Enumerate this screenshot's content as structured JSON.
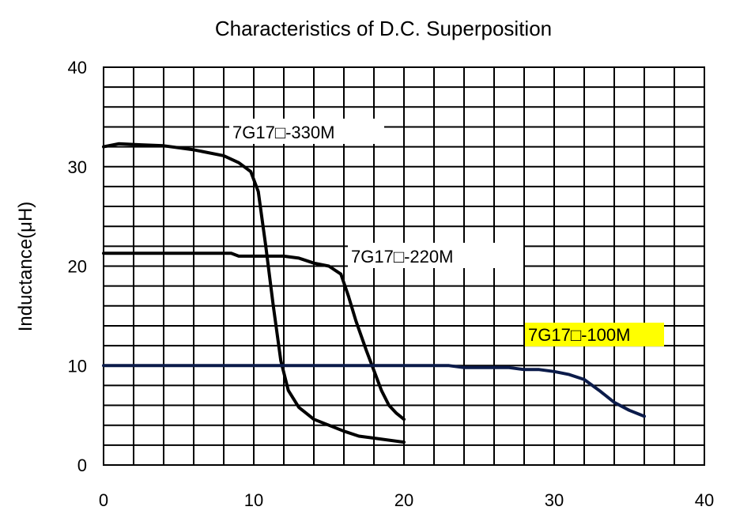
{
  "chart_data": {
    "type": "line",
    "title": "Characteristics of D.C. Superposition",
    "xlabel": "",
    "ylabel": "Inductance(μH)",
    "xlim": [
      0,
      40
    ],
    "ylim": [
      0,
      40
    ],
    "x_ticks": [
      "0",
      "10",
      "20",
      "30",
      "40"
    ],
    "y_ticks": [
      "0",
      "10",
      "20",
      "30",
      "40"
    ],
    "grid": true,
    "x_minor_step": 2,
    "y_minor_step": 2,
    "series": [
      {
        "name": "7G17□-330M",
        "color": "#000000",
        "x": [
          0,
          1,
          2.5,
          4,
          6,
          8,
          9,
          9.8,
          10.3,
          10.8,
          11.3,
          11.8,
          12.3,
          13,
          14,
          15,
          16,
          17,
          18,
          20
        ],
        "y": [
          32,
          32.3,
          32.2,
          32.1,
          31.7,
          31.1,
          30.4,
          29.5,
          27.5,
          22,
          16,
          10.5,
          7.5,
          5.8,
          4.6,
          4.0,
          3.4,
          2.9,
          2.7,
          2.3
        ]
      },
      {
        "name": "7G17□-220M",
        "color": "#000000",
        "x": [
          0,
          4,
          8.5,
          9,
          12,
          13,
          14,
          15,
          15.8,
          16.3,
          16.8,
          17.5,
          18,
          18.5,
          19,
          19.5,
          20
        ],
        "y": [
          21.3,
          21.3,
          21.3,
          21.0,
          21.0,
          20.8,
          20.3,
          20.0,
          19.2,
          17,
          14.5,
          11.5,
          9.5,
          7.5,
          6.0,
          5.2,
          4.6
        ]
      },
      {
        "name": "7G17□-100M",
        "color": "#0b1b4a",
        "x": [
          0,
          10,
          20,
          23,
          24,
          27,
          28,
          29,
          30,
          31,
          32,
          33,
          34,
          35,
          36
        ],
        "y": [
          10,
          10,
          10,
          10,
          9.8,
          9.8,
          9.6,
          9.6,
          9.4,
          9.1,
          8.6,
          7.5,
          6.3,
          5.5,
          4.9
        ]
      }
    ],
    "annotations": [
      {
        "text": "7G17□-330M",
        "series": 0,
        "highlight": false
      },
      {
        "text": "7G17□-220M",
        "series": 1,
        "highlight": false
      },
      {
        "text": "7G17□-100M",
        "series": 2,
        "highlight": true,
        "highlight_color": "#ffff00"
      }
    ]
  }
}
